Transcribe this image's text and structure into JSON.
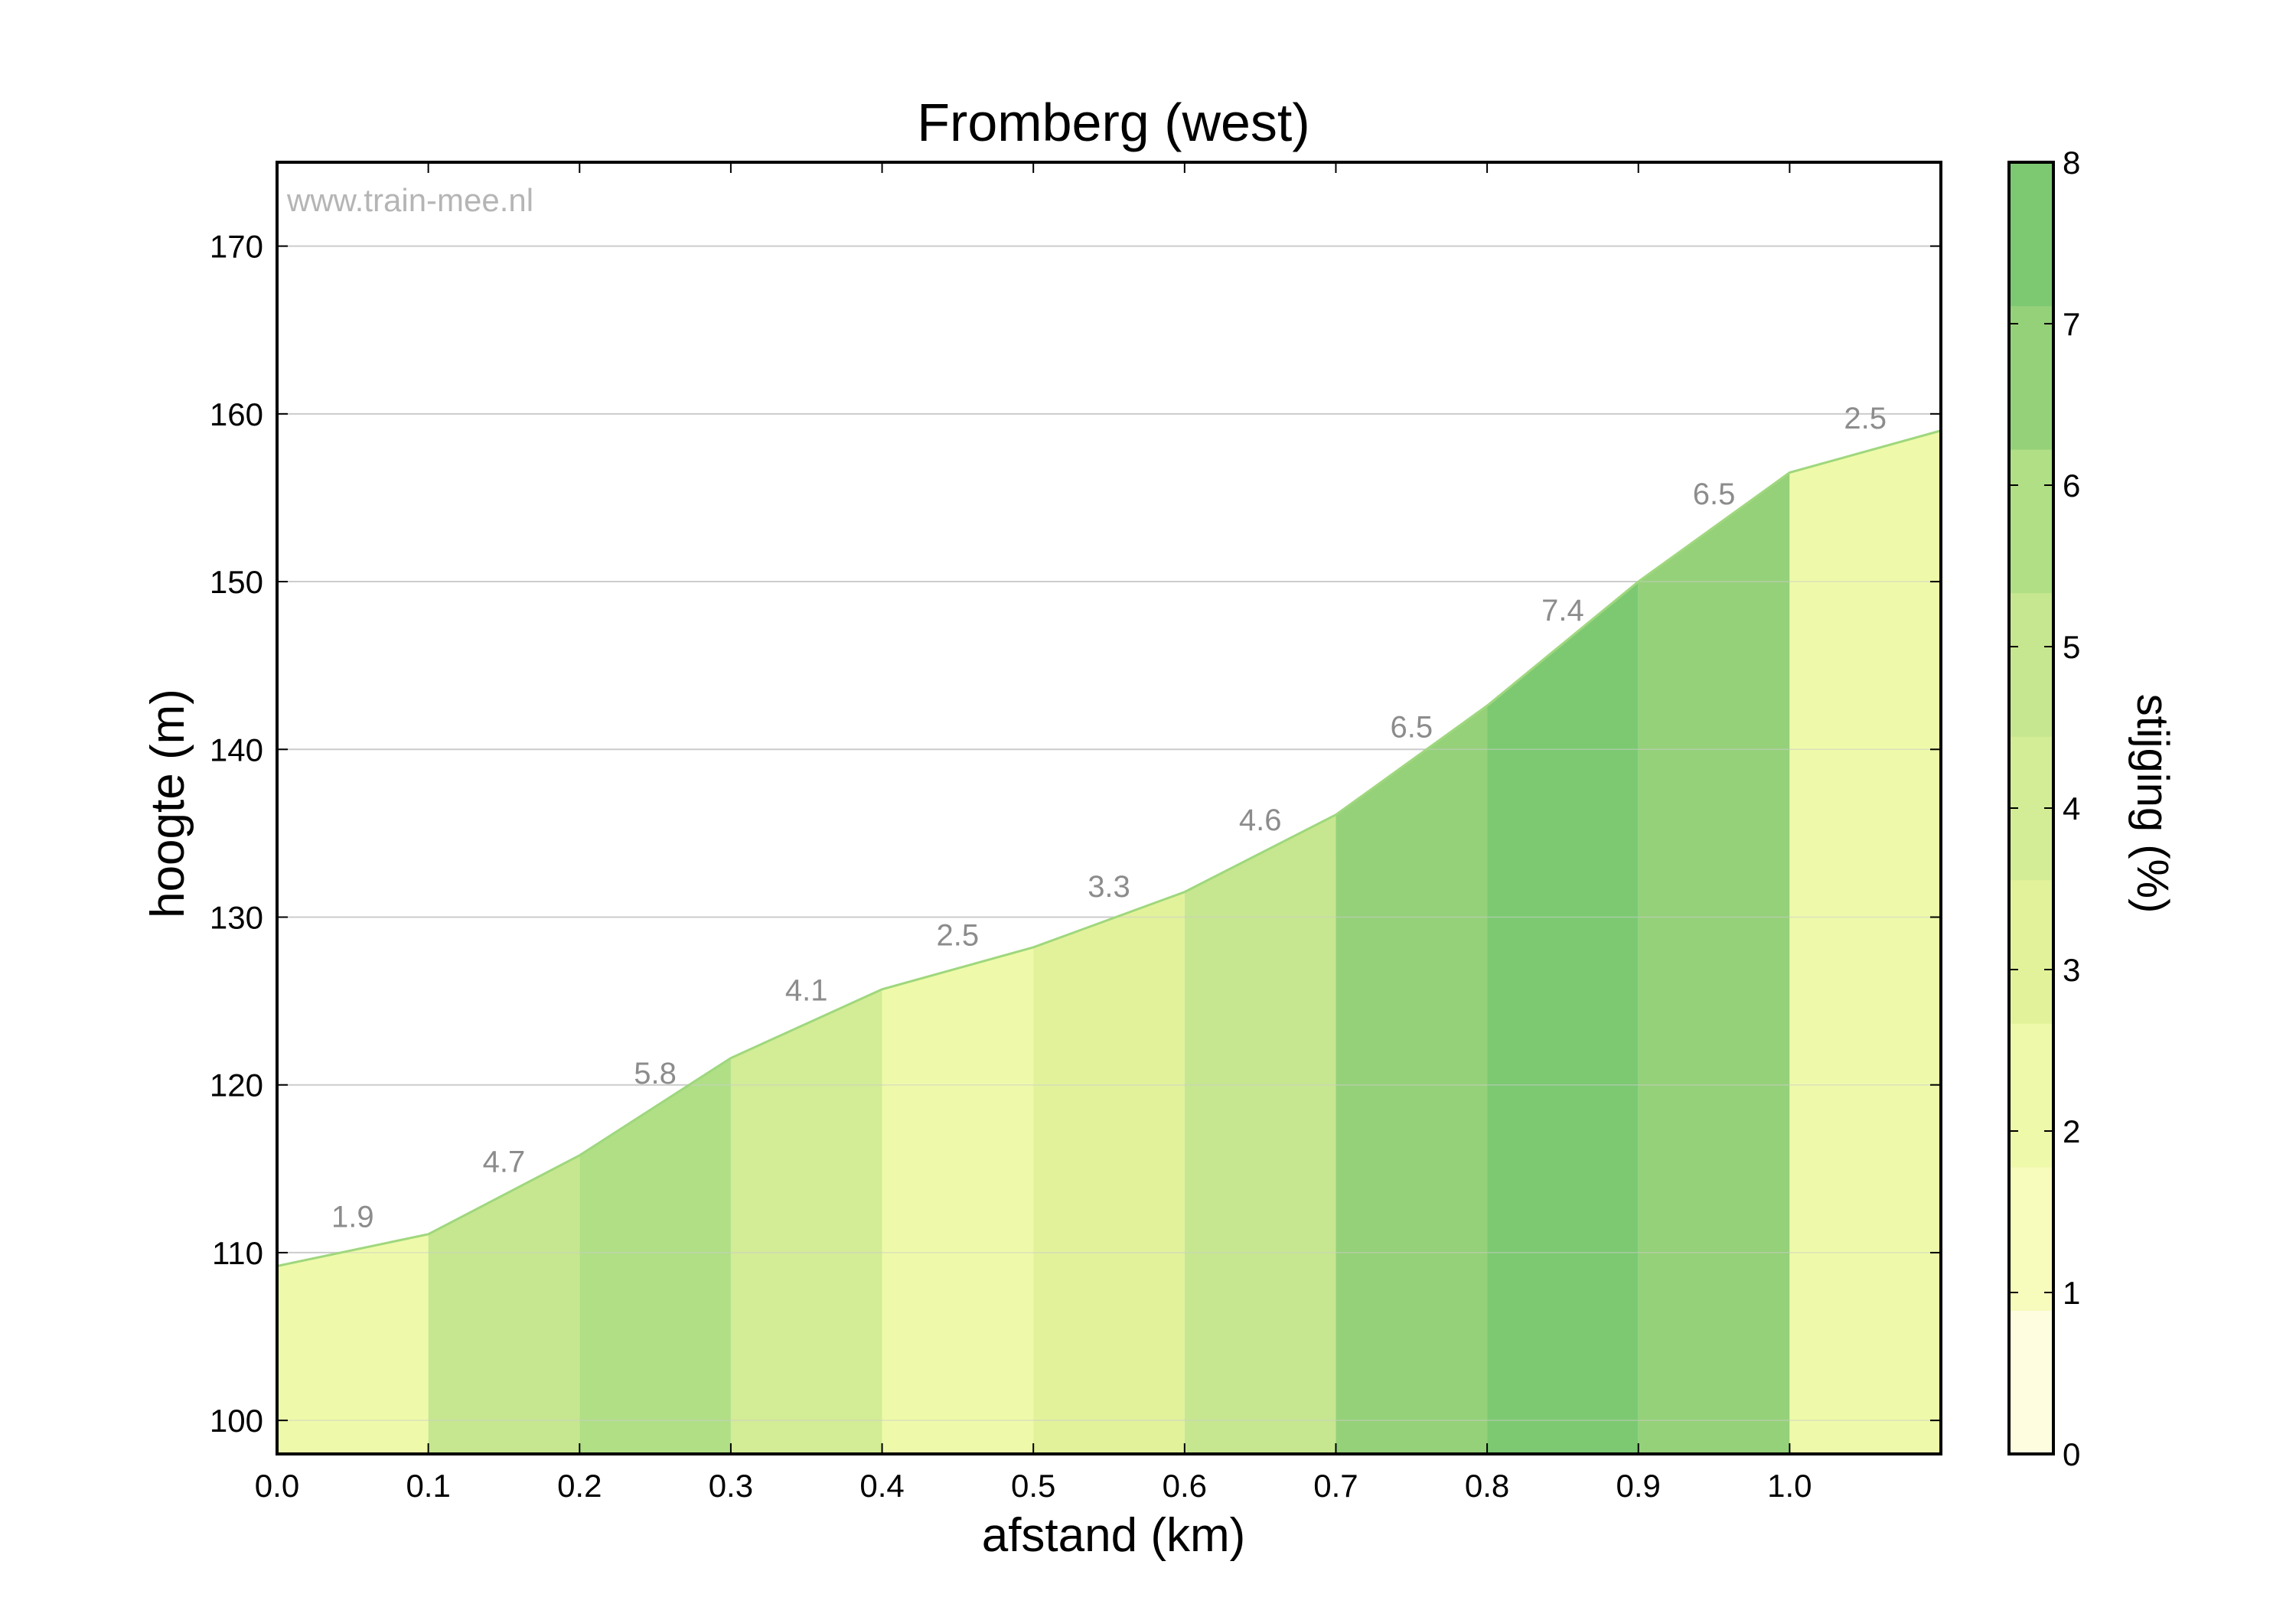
{
  "chart_data": {
    "type": "area",
    "title": "Fromberg (west)",
    "watermark": "www.train-mee.nl",
    "xlabel": "afstand (km)",
    "ylabel": "hoogte (m)",
    "xlim": [
      0.0,
      1.1
    ],
    "ylim": [
      98,
      175
    ],
    "x_ticks": [
      "0.0",
      "0.1",
      "0.2",
      "0.3",
      "0.4",
      "0.5",
      "0.6",
      "0.7",
      "0.8",
      "0.9",
      "1.0"
    ],
    "y_ticks": [
      "100",
      "110",
      "120",
      "130",
      "140",
      "150",
      "160",
      "170"
    ],
    "grid": true,
    "x": [
      0.0,
      0.1,
      0.2,
      0.3,
      0.4,
      0.5,
      0.6,
      0.7,
      0.8,
      0.9,
      1.0,
      1.1
    ],
    "elevation": [
      109.2,
      111.1,
      115.8,
      121.6,
      125.7,
      128.2,
      131.5,
      136.1,
      142.6,
      150.0,
      156.5,
      159.0
    ],
    "segment_labels": [
      "1.9",
      "4.7",
      "5.8",
      "4.1",
      "2.5",
      "3.3",
      "4.6",
      "6.5",
      "7.4",
      "6.5",
      "2.5"
    ],
    "colorbar": {
      "label": "stijging (%)",
      "range": [
        0,
        8
      ],
      "ticks": [
        "0",
        "1",
        "2",
        "3",
        "4",
        "5",
        "6",
        "7",
        "8"
      ],
      "colors": [
        "#fefde0",
        "#f7fbbb",
        "#eefaa9",
        "#e2f29b",
        "#d3ec96",
        "#c6e78f",
        "#b0df86",
        "#95d179",
        "#7cc972"
      ]
    },
    "colors": {
      "line": "#9fd77e",
      "grid": "#cccccc",
      "label": "#8c8c8c",
      "watermark": "#b5b5b5",
      "axis": "#000000"
    }
  }
}
